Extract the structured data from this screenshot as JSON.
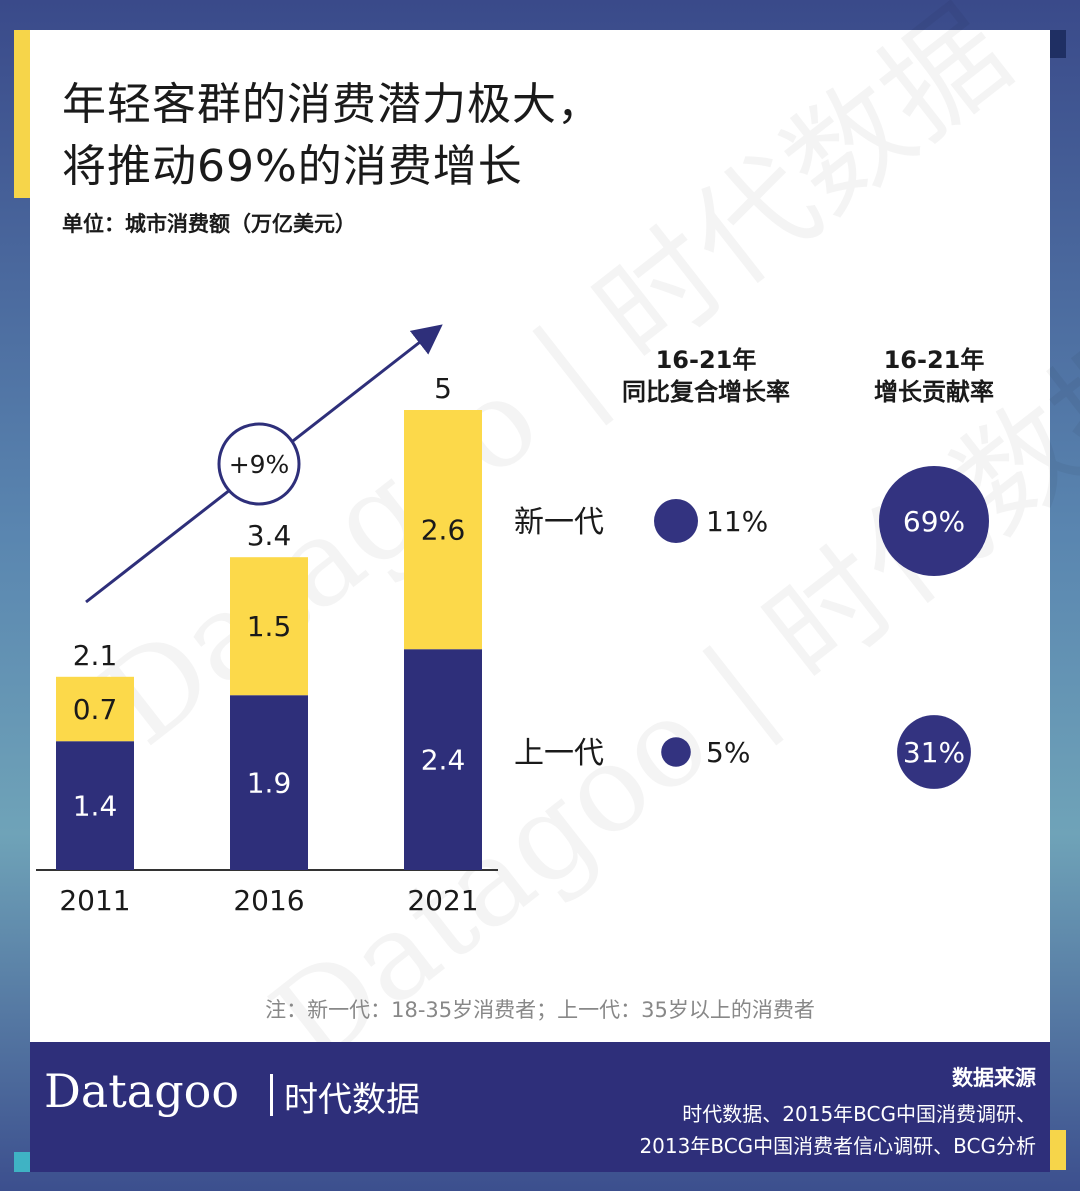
{
  "title": [
    "年轻客群的消费潜力极大，",
    "将推动69%的消费增长"
  ],
  "unit": "单位：城市消费额（万亿美元）",
  "note": "注：新一代：18-35岁消费者；上一代：35岁以上的消费者",
  "watermark": "Datagoo | 时代数据",
  "footer": {
    "logo_latin": "Datagoo",
    "logo_cn": "时代数据",
    "source_title": "数据来源",
    "source_lines": [
      "时代数据、2015年BCG中国消费调研、",
      "2013年BCG中国消费者信心调研、BCG分析"
    ]
  },
  "colors": {
    "new_generation": "#fcd94a",
    "old_generation": "#2e2f7a",
    "bubble": "#333380",
    "footer": "#2e2f7a"
  },
  "chart_data": [
    {
      "type": "bar",
      "stacked": true,
      "categories": [
        "2011",
        "2016",
        "2021"
      ],
      "series": [
        {
          "name": "上一代",
          "values": [
            1.4,
            1.9,
            2.4
          ]
        },
        {
          "name": "新一代",
          "values": [
            0.7,
            1.5,
            2.6
          ]
        }
      ],
      "totals": [
        2.1,
        3.4,
        5
      ],
      "annotation": "+9%",
      "ylim": [
        0,
        5
      ]
    },
    {
      "type": "bubble",
      "rows": [
        "新一代",
        "上一代"
      ],
      "columns": [
        {
          "header": [
            "16-21年",
            "同比复合增长率"
          ],
          "values": [
            "11%",
            "5%"
          ],
          "numeric": [
            11,
            5
          ]
        },
        {
          "header": [
            "16-21年",
            "增长贡献率"
          ],
          "values": [
            "69%",
            "31%"
          ],
          "numeric": [
            69,
            31
          ]
        }
      ]
    }
  ]
}
